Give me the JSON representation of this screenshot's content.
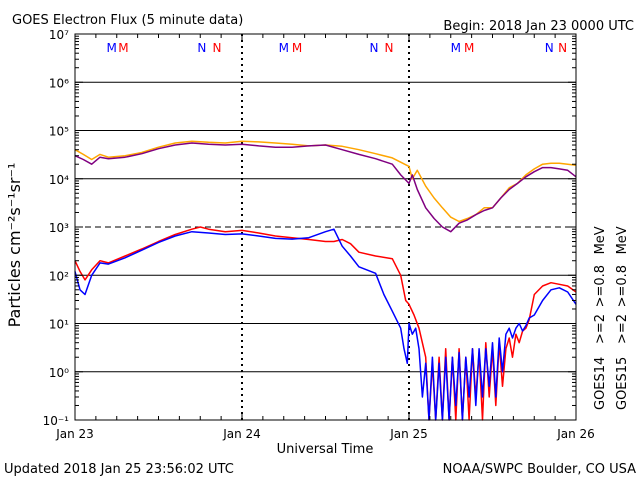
{
  "header": {
    "title": "GOES Electron Flux (5 minute data)",
    "begin": "Begin: 2018 Jan 23 0000 UTC"
  },
  "footer": {
    "updated": "Updated 2018 Jan 25 23:56:02 UTC",
    "credit": "NOAA/SWPC Boulder, CO USA"
  },
  "chart_data": {
    "type": "line",
    "title": "GOES Electron Flux (5 minute data)",
    "xlabel": "Universal Time",
    "ylabel": "Particles cm⁻²s⁻¹sr⁻¹",
    "yscale": "log",
    "ylim": [
      0.1,
      10000000
    ],
    "xlim": [
      0,
      3
    ],
    "x_tick_labels": [
      "Jan 23",
      "Jan 24",
      "Jan 25",
      "Jan 26"
    ],
    "y_tick_labels": [
      "10⁻¹",
      "10⁰",
      "10¹",
      "10²",
      "10³",
      "10⁴",
      "10⁵",
      "10⁶",
      "10⁷"
    ],
    "grid": "horizontal at each decade, dashed at 10^3 threshold",
    "markers": [
      {
        "label": "M",
        "color": "#0000ff",
        "x": 0.22
      },
      {
        "label": "M",
        "color": "#ff0000",
        "x": 0.29
      },
      {
        "label": "N",
        "color": "#0000ff",
        "x": 0.76
      },
      {
        "label": "N",
        "color": "#ff0000",
        "x": 0.85
      },
      {
        "label": "M",
        "color": "#0000ff",
        "x": 1.25
      },
      {
        "label": "M",
        "color": "#ff0000",
        "x": 1.33
      },
      {
        "label": "N",
        "color": "#0000ff",
        "x": 1.79
      },
      {
        "label": "N",
        "color": "#ff0000",
        "x": 1.88
      },
      {
        "label": "M",
        "color": "#0000ff",
        "x": 2.28
      },
      {
        "label": "M",
        "color": "#ff0000",
        "x": 2.36
      },
      {
        "label": "N",
        "color": "#0000ff",
        "x": 2.84
      },
      {
        "label": "N",
        "color": "#ff0000",
        "x": 2.92
      }
    ],
    "legend": {
      "groups": [
        {
          "satellite": "GOES14",
          "items": [
            {
              "text": ">=2",
              "color": "#ff0000"
            },
            {
              "text": ">=0.8",
              "color": "#ffa500"
            },
            {
              "text": "MeV",
              "color": "#000000"
            }
          ]
        },
        {
          "satellite": "GOES15",
          "items": [
            {
              "text": ">=2",
              "color": "#0000ff"
            },
            {
              "text": ">=0.8",
              "color": "#800080"
            },
            {
              "text": "MeV",
              "color": "#000000"
            }
          ]
        }
      ]
    },
    "series": [
      {
        "color": "#ffa500",
        "x": [
          0,
          0.05,
          0.1,
          0.15,
          0.2,
          0.3,
          0.4,
          0.5,
          0.6,
          0.7,
          0.8,
          0.9,
          1.0,
          1.1,
          1.2,
          1.3,
          1.4,
          1.5,
          1.6,
          1.7,
          1.8,
          1.9,
          1.95,
          2.0,
          2.02,
          2.05,
          2.1,
          2.15,
          2.2,
          2.25,
          2.3,
          2.35,
          2.4,
          2.45,
          2.5,
          2.55,
          2.6,
          2.65,
          2.7,
          2.75,
          2.8,
          2.85,
          2.9,
          2.95,
          3.0
        ],
        "y": [
          40000,
          32000,
          25000,
          32000,
          28000,
          30000,
          35000,
          45000,
          55000,
          60000,
          57000,
          55000,
          60000,
          58000,
          55000,
          52000,
          48000,
          50000,
          47000,
          40000,
          33000,
          27000,
          22000,
          18000,
          10000,
          15000,
          7000,
          4000,
          2500,
          1600,
          1300,
          1500,
          1800,
          2500,
          2500,
          4000,
          6500,
          8000,
          12000,
          16000,
          20000,
          21000,
          21000,
          20000,
          19000
        ]
      },
      {
        "color": "#800080",
        "x": [
          0,
          0.05,
          0.1,
          0.15,
          0.2,
          0.3,
          0.4,
          0.5,
          0.6,
          0.7,
          0.8,
          0.9,
          1.0,
          1.1,
          1.2,
          1.3,
          1.4,
          1.5,
          1.6,
          1.7,
          1.8,
          1.9,
          1.95,
          2.0,
          2.02,
          2.05,
          2.1,
          2.15,
          2.2,
          2.25,
          2.3,
          2.35,
          2.4,
          2.45,
          2.5,
          2.55,
          2.6,
          2.65,
          2.7,
          2.75,
          2.8,
          2.85,
          2.9,
          2.95,
          3.0
        ],
        "y": [
          30000,
          25000,
          20000,
          28000,
          26000,
          28000,
          33000,
          42000,
          50000,
          55000,
          52000,
          50000,
          52000,
          48000,
          45000,
          45000,
          48000,
          50000,
          40000,
          32000,
          26000,
          20000,
          12000,
          8000,
          12000,
          6000,
          2500,
          1500,
          1000,
          800,
          1200,
          1400,
          1800,
          2200,
          2500,
          4000,
          6000,
          8000,
          11000,
          14000,
          17000,
          17000,
          16000,
          15000,
          11000
        ]
      },
      {
        "color": "#ff0000",
        "x": [
          0,
          0.03,
          0.06,
          0.1,
          0.15,
          0.2,
          0.3,
          0.4,
          0.5,
          0.6,
          0.7,
          0.75,
          0.8,
          0.9,
          1.0,
          1.1,
          1.2,
          1.3,
          1.4,
          1.5,
          1.55,
          1.6,
          1.65,
          1.7,
          1.8,
          1.9,
          1.95,
          1.98,
          2.0,
          2.03,
          2.06,
          2.1,
          2.12,
          2.14,
          2.16,
          2.18,
          2.2,
          2.22,
          2.24,
          2.26,
          2.28,
          2.3,
          2.32,
          2.34,
          2.36,
          2.38,
          2.4,
          2.42,
          2.44,
          2.46,
          2.48,
          2.5,
          2.52,
          2.54,
          2.56,
          2.58,
          2.6,
          2.62,
          2.64,
          2.66,
          2.68,
          2.7,
          2.72,
          2.75,
          2.8,
          2.85,
          2.9,
          2.95,
          3.0
        ],
        "y": [
          200,
          120,
          80,
          130,
          200,
          180,
          250,
          350,
          500,
          700,
          900,
          1000,
          900,
          800,
          850,
          750,
          650,
          600,
          550,
          500,
          500,
          550,
          450,
          300,
          250,
          220,
          100,
          30,
          25,
          15,
          8,
          2,
          0.1,
          1.5,
          0.1,
          2,
          0.1,
          3,
          0.1,
          2,
          0.1,
          3,
          0.1,
          2,
          0.1,
          3,
          0.3,
          2.5,
          0.1,
          4,
          0.3,
          3,
          0.2,
          4,
          0.5,
          3,
          5,
          2,
          6,
          4,
          7,
          8,
          12,
          40,
          60,
          70,
          65,
          60,
          45
        ]
      },
      {
        "color": "#0000ff",
        "x": [
          0,
          0.03,
          0.06,
          0.1,
          0.15,
          0.2,
          0.3,
          0.4,
          0.5,
          0.6,
          0.7,
          0.8,
          0.9,
          1.0,
          1.1,
          1.2,
          1.3,
          1.4,
          1.5,
          1.55,
          1.6,
          1.65,
          1.7,
          1.8,
          1.85,
          1.9,
          1.95,
          1.97,
          1.99,
          2.0,
          2.02,
          2.04,
          2.06,
          2.08,
          2.1,
          2.12,
          2.14,
          2.16,
          2.18,
          2.2,
          2.22,
          2.24,
          2.26,
          2.28,
          2.3,
          2.32,
          2.34,
          2.36,
          2.38,
          2.4,
          2.42,
          2.44,
          2.46,
          2.48,
          2.5,
          2.52,
          2.54,
          2.56,
          2.58,
          2.6,
          2.62,
          2.64,
          2.66,
          2.68,
          2.7,
          2.72,
          2.75,
          2.8,
          2.85,
          2.9,
          2.95,
          3.0
        ],
        "y": [
          120,
          50,
          40,
          100,
          180,
          170,
          230,
          330,
          480,
          650,
          800,
          750,
          700,
          720,
          650,
          580,
          560,
          600,
          800,
          900,
          400,
          250,
          150,
          110,
          40,
          18,
          8,
          3,
          1.5,
          10,
          6,
          8,
          3,
          0.3,
          1.5,
          0.1,
          2,
          0.1,
          1.5,
          0.1,
          2,
          0.1,
          2,
          0.2,
          2.5,
          0.1,
          2,
          0.3,
          3,
          0.2,
          3,
          0.3,
          3,
          0.5,
          4,
          0.3,
          5,
          1,
          6,
          8,
          5,
          8,
          10,
          7,
          9,
          13,
          15,
          30,
          50,
          55,
          45,
          25
        ]
      }
    ]
  }
}
